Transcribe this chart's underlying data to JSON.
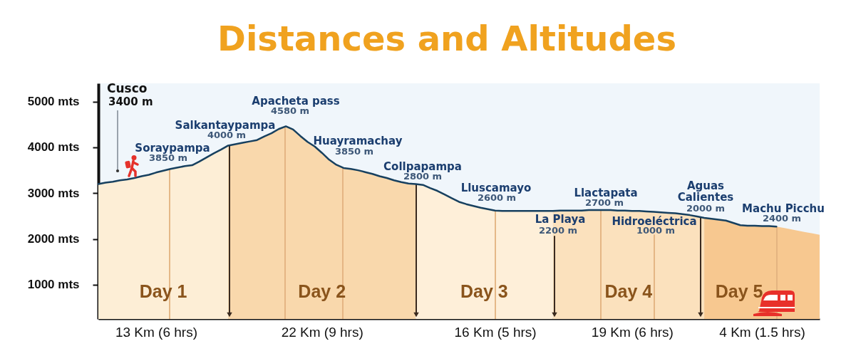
{
  "chart_data": {
    "type": "area",
    "title": "Distances and Altitudes",
    "categories": [
      null,
      null,
      null,
      null,
      null,
      null,
      null,
      null,
      "13 Km (6 hrs)",
      null,
      null,
      null,
      null,
      null,
      null,
      null,
      null,
      null,
      null,
      null,
      null,
      null,
      null,
      null,
      null,
      null,
      null,
      null,
      null,
      null,
      null,
      "22 Km (9 hrs)",
      null,
      null,
      null,
      null,
      null,
      null,
      null,
      null,
      null,
      null,
      null,
      null,
      null,
      null,
      null,
      null,
      null,
      null,
      null,
      null,
      null,
      null,
      null,
      "16 Km (5 hrs)",
      null,
      null,
      null,
      null,
      null,
      null,
      null,
      null,
      null,
      null,
      null,
      null,
      null,
      null,
      null,
      null,
      null,
      null,
      "19 Km (6 hrs)",
      null,
      null,
      null,
      null,
      null,
      null,
      null,
      null,
      null,
      null,
      null,
      null,
      null,
      null,
      null,
      null,
      null,
      "4 Km (1.5 hrs)",
      null,
      null,
      null,
      null,
      null,
      null,
      null,
      null
    ],
    "series": [
      {
        "name": "Day 1",
        "type": "area",
        "color": "#fdeed6",
        "values": [
          3200,
          3230,
          3250,
          3280,
          3300,
          3330,
          3370,
          3400,
          3450,
          3490,
          3530,
          3560,
          3590,
          3610,
          3690,
          3780,
          3870,
          3950,
          4040,
          null,
          null,
          null,
          null,
          null,
          null,
          null,
          null,
          null,
          null,
          null,
          null,
          null,
          null,
          null,
          null,
          null,
          null,
          null,
          null,
          null,
          null,
          null,
          null,
          null,
          null,
          null,
          null,
          null,
          null,
          null,
          null,
          null,
          null,
          null,
          null,
          null,
          null,
          null,
          null,
          null,
          null,
          null,
          null,
          null,
          null,
          null,
          null,
          null,
          null,
          null,
          null,
          null,
          null,
          null,
          null,
          null,
          null,
          null,
          null,
          null,
          null,
          null,
          null,
          null,
          null,
          null,
          null,
          null,
          null,
          null,
          null,
          null,
          null,
          null,
          null,
          null,
          null,
          null,
          null,
          null,
          null
        ]
      },
      {
        "name": "Day 2",
        "type": "area",
        "color": "#f9d8ac",
        "values": [
          null,
          null,
          null,
          null,
          null,
          null,
          null,
          null,
          null,
          null,
          null,
          null,
          null,
          null,
          null,
          null,
          null,
          null,
          4040,
          4070,
          4100,
          4130,
          4160,
          4240,
          4310,
          4400,
          4460,
          4390,
          4250,
          4120,
          4020,
          3880,
          3730,
          3620,
          3550,
          3530,
          3500,
          3460,
          3420,
          3370,
          3330,
          3280,
          3240,
          3210,
          3200,
          null,
          null,
          null,
          null,
          null,
          null,
          null,
          null,
          null,
          null,
          null,
          null,
          null,
          null,
          null,
          null,
          null,
          null,
          null,
          null,
          null,
          null,
          null,
          null,
          null,
          null,
          null,
          null,
          null,
          null,
          null,
          null,
          null,
          null,
          null,
          null,
          null,
          null,
          null,
          null,
          null,
          null,
          null,
          null,
          null,
          null,
          null,
          null,
          null,
          null,
          null,
          null,
          null,
          null,
          null,
          null
        ]
      },
      {
        "name": "Day 3",
        "type": "area",
        "color": "#feefd9",
        "values": [
          null,
          null,
          null,
          null,
          null,
          null,
          null,
          null,
          null,
          null,
          null,
          null,
          null,
          null,
          null,
          null,
          null,
          null,
          null,
          null,
          null,
          null,
          null,
          null,
          null,
          null,
          null,
          null,
          null,
          null,
          null,
          null,
          null,
          null,
          null,
          null,
          null,
          null,
          null,
          null,
          null,
          null,
          null,
          null,
          3200,
          3180,
          3110,
          3050,
          2970,
          2890,
          2810,
          2760,
          2720,
          2680,
          2650,
          2620,
          2610,
          2610,
          2610,
          2610,
          2610,
          2610,
          2610,
          2610,
          null,
          null,
          null,
          null,
          null,
          null,
          null,
          null,
          null,
          null,
          null,
          null,
          null,
          null,
          null,
          null,
          null,
          null,
          null,
          null,
          null,
          null,
          null,
          null,
          null,
          null,
          null,
          null,
          null,
          null,
          null,
          null,
          null,
          null,
          null,
          null,
          null
        ]
      },
      {
        "name": "Day 4",
        "type": "area",
        "color": "#fbe1bd",
        "values": [
          null,
          null,
          null,
          null,
          null,
          null,
          null,
          null,
          null,
          null,
          null,
          null,
          null,
          null,
          null,
          null,
          null,
          null,
          null,
          null,
          null,
          null,
          null,
          null,
          null,
          null,
          null,
          null,
          null,
          null,
          null,
          null,
          null,
          null,
          null,
          null,
          null,
          null,
          null,
          null,
          null,
          null,
          null,
          null,
          null,
          null,
          null,
          null,
          null,
          null,
          null,
          null,
          null,
          null,
          null,
          null,
          null,
          null,
          null,
          null,
          null,
          null,
          null,
          2610,
          2620,
          2620,
          2620,
          2620,
          2630,
          2630,
          2630,
          2630,
          2620,
          2620,
          2610,
          2610,
          2600,
          2590,
          2580,
          2570,
          2560,
          2540,
          2520,
          2490,
          2460,
          null,
          null,
          null,
          null,
          null,
          null,
          null,
          null,
          null,
          null,
          null,
          null,
          null,
          null,
          null,
          null
        ]
      },
      {
        "name": "Day 5",
        "type": "area",
        "color": "#f7c890",
        "values": [
          null,
          null,
          null,
          null,
          null,
          null,
          null,
          null,
          null,
          null,
          null,
          null,
          null,
          null,
          null,
          null,
          null,
          null,
          null,
          null,
          null,
          null,
          null,
          null,
          null,
          null,
          null,
          null,
          null,
          null,
          null,
          null,
          null,
          null,
          null,
          null,
          null,
          null,
          null,
          null,
          null,
          null,
          null,
          null,
          null,
          null,
          null,
          null,
          null,
          null,
          null,
          null,
          null,
          null,
          null,
          null,
          null,
          null,
          null,
          null,
          null,
          null,
          null,
          null,
          null,
          null,
          null,
          null,
          null,
          null,
          null,
          null,
          null,
          null,
          null,
          null,
          null,
          null,
          null,
          null,
          null,
          null,
          null,
          null,
          2460,
          2440,
          2420,
          2400,
          2350,
          2300,
          2290,
          2290,
          2280,
          2280,
          2270,
          2240,
          2210,
          2180,
          2150,
          2120,
          2090
        ]
      },
      {
        "type": "line",
        "color": "#17405f",
        "values": [
          3200,
          3230,
          3250,
          3280,
          3300,
          3330,
          3370,
          3400,
          3450,
          3490,
          3530,
          3560,
          3590,
          3610,
          3690,
          3780,
          3870,
          3950,
          4040,
          4070,
          4100,
          4130,
          4160,
          4240,
          4310,
          4400,
          4460,
          4390,
          4250,
          4120,
          4020,
          3880,
          3730,
          3620,
          3550,
          3530,
          3500,
          3460,
          3420,
          3370,
          3330,
          3280,
          3240,
          3210,
          3200,
          3180,
          3110,
          3050,
          2970,
          2890,
          2810,
          2760,
          2720,
          2680,
          2650,
          2620,
          2610,
          2610,
          2610,
          2610,
          2610,
          2610,
          2610,
          2610,
          2620,
          2620,
          2620,
          2620,
          2630,
          2630,
          2630,
          2630,
          2620,
          2620,
          2610,
          2610,
          2600,
          2590,
          2580,
          2570,
          2560,
          2540,
          2520,
          2490,
          2460,
          2440,
          2420,
          2400,
          2350,
          2300,
          2290,
          2290,
          2280,
          2280,
          2270,
          null,
          null,
          null,
          null,
          null,
          null
        ]
      }
    ],
    "ylim": [
      250,
      5400
    ],
    "yticks": [
      {
        "value": 1000,
        "label": "1000 mts"
      },
      {
        "value": 2000,
        "label": "2000 mts"
      },
      {
        "value": 3000,
        "label": "3000 mts"
      },
      {
        "value": 4000,
        "label": "4000 mts"
      },
      {
        "value": 5000,
        "label": "5000 mts"
      }
    ],
    "annotations": [
      "Cusco",
      "3400 m",
      {
        "text": "Soraypampa",
        "y": 3530
      },
      {
        "text": "3850 m",
        "y": 3530
      },
      {
        "text": "Salkantaypampa",
        "y": 4040
      },
      {
        "text": "4000 m",
        "y": 4040
      },
      {
        "text": "Apacheta pass",
        "y": 4460
      },
      {
        "text": "4580 m",
        "y": 4460
      },
      {
        "text": "Huayramachay",
        "y": 3550
      },
      {
        "text": "3850 m",
        "y": 3550
      },
      {
        "text": "Collpapampa",
        "y": 3200
      },
      {
        "text": "2800 m",
        "y": 3200
      },
      {
        "text": "Lluscamayo",
        "y": 2620
      },
      {
        "text": "2600 m",
        "y": 2620
      },
      {
        "text": "La Playa",
        "y": 2610
      },
      {
        "text": "2200 m",
        "y": 2610
      },
      {
        "text": "Llactapata",
        "y": 2630
      },
      {
        "text": "2700 m",
        "y": 2630
      },
      {
        "text": "Hidroeléctrica",
        "y": 2590
      },
      {
        "text": "1000 m",
        "y": 2590
      },
      {
        "text": "Aguas Calientes",
        "y": 2470
      },
      {
        "text": "2000 m",
        "y": 2470
      },
      {
        "text": "Machu Picchu",
        "y": 2270
      },
      {
        "text": "2400 m",
        "y": 2270
      }
    ]
  }
}
